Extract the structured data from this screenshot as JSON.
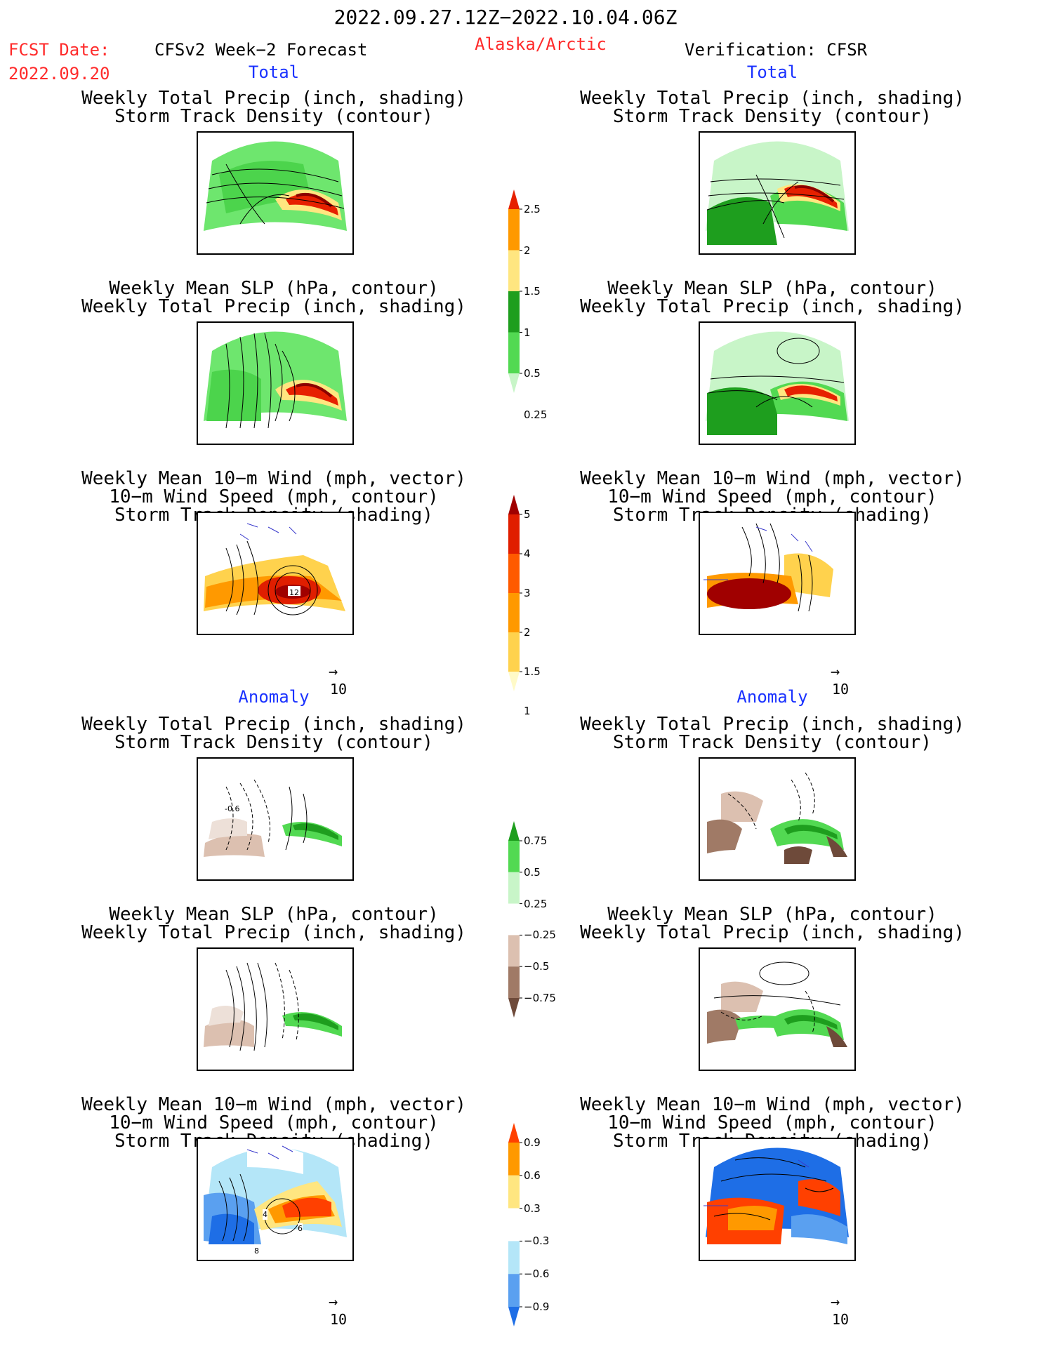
{
  "header": {
    "period": "2022.09.27.12Z−2022.10.04.06Z",
    "fcst_date_label": "FCST Date:",
    "fcst_date_value": "2022.09.20",
    "model_label": "CFSv2 Week−2 Forecast",
    "region": "Alaska/Arctic",
    "verification_label": "Verification: CFSR"
  },
  "sections": {
    "total": "Total",
    "anomaly": "Anomaly"
  },
  "panel_titles": {
    "precip_storm": [
      "Weekly Total Precip (inch, shading)",
      "Storm Track Density (contour)"
    ],
    "slp_precip": [
      "Weekly Mean SLP (hPa, contour)",
      "Weekly Total Precip (inch, shading)"
    ],
    "wind_storm": [
      "Weekly Mean 10−m Wind (mph, vector)",
      "10−m Wind Speed (mph, contour)",
      "Storm Track Density (shading)"
    ]
  },
  "reference_vector": "10",
  "colorbars": {
    "precip_total": {
      "colors": [
        "#c8f5c8",
        "#52d952",
        "#1e9e1e",
        "#ffe680",
        "#ff9900",
        "#e62000"
      ],
      "labels": [
        "0.25",
        "0.5",
        "1",
        "1.5",
        "2",
        "2.5"
      ]
    },
    "storm_total": {
      "colors": [
        "#fffac8",
        "#ffd24d",
        "#ff9900",
        "#ff5a00",
        "#e01e00",
        "#a00000"
      ],
      "labels": [
        "1",
        "1.5",
        "2",
        "3",
        "4",
        "5"
      ]
    },
    "precip_anom": {
      "colors": [
        "#6e4a3a",
        "#a07a66",
        "#dcc0b0",
        "#ffffff",
        "#c8f5c8",
        "#52d952",
        "#1e9e1e"
      ],
      "labels": [
        "−0.75",
        "−0.5",
        "−0.25",
        "0.25",
        "0.5",
        "0.75"
      ]
    },
    "storm_anom": {
      "colors": [
        "#1e6ee6",
        "#5aa0f0",
        "#b4e6f8",
        "#ffffff",
        "#ffe680",
        "#ff9900",
        "#ff4000"
      ],
      "labels": [
        "−0.9",
        "−0.6",
        "−0.3",
        "0.3",
        "0.6",
        "0.9"
      ]
    }
  },
  "map_labels": {
    "fcst_total_wind_max": "12",
    "fcst_anom_precip_contour": "-0.6",
    "fcst_anom_wind": [
      "4",
      "6",
      "8"
    ]
  }
}
